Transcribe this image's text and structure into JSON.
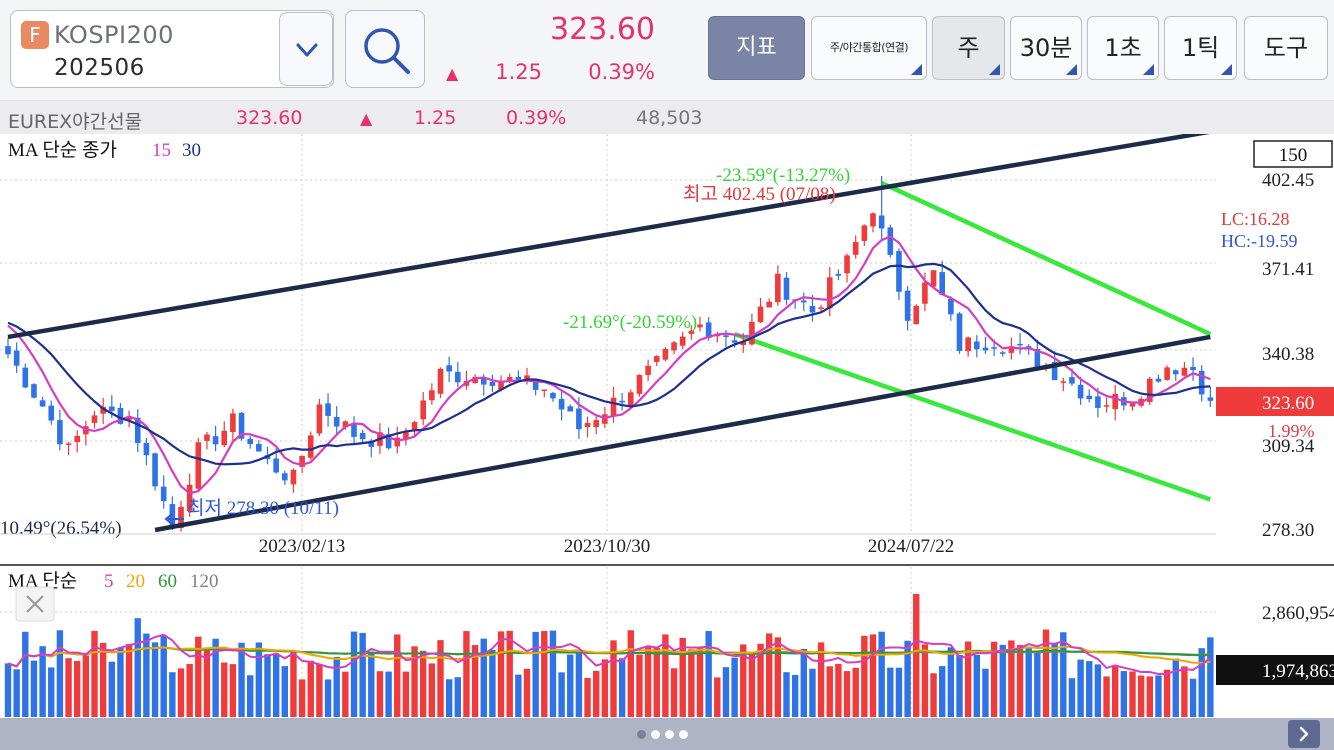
{
  "header": {
    "symbol_badge": "F",
    "symbol_name": "KOSPI200",
    "symbol_code": "202506",
    "price": "323.60",
    "change_arrow": "▲",
    "change": "1.25",
    "change_pct": "0.39%"
  },
  "toolbar": {
    "indicator": "지표",
    "session": "주/야간통합(연결)",
    "period": "주",
    "min30": "30분",
    "sec1": "1초",
    "tick1": "1틱",
    "tools": "도구"
  },
  "subbar": {
    "name": "EUREX야간선물",
    "price": "323.60",
    "arrow": "▲",
    "change": "1.25",
    "pct": "0.39%",
    "volume": "48,503"
  },
  "price_panel": {
    "legend_title": "MA 단순 종가",
    "ma_a": "15",
    "ma_b": "30",
    "count_box": "150",
    "y_labels": [
      "402.45",
      "371.41",
      "340.38",
      "309.34",
      "278.30"
    ],
    "x_labels": [
      "2023/02/13",
      "2023/10/30",
      "2024/07/22"
    ],
    "lc": "LC:16.28",
    "hc": "HC:-19.59",
    "current_price": "323.60",
    "current_pct": "1.99%",
    "annot_high": "최고 402.45 (07/08)",
    "annot_low": "최저 278.30 (10/11)",
    "annot_angle_top": "-23.59°(-13.27%)",
    "annot_angle_mid": "-21.69°(-20.59%)",
    "annot_angle_left": "10.49°(26.54%)"
  },
  "volume_panel": {
    "legend_title": "MA 단순",
    "ma5": "5",
    "ma20": "20",
    "ma60": "60",
    "ma120": "120",
    "y_top": "2,860,954",
    "current_volume": "1,974,863"
  },
  "colors": {
    "up": "#ef3b3b",
    "down": "#2f73e6",
    "ma15": "#d43fc0",
    "ma30": "#1f2f8f",
    "channel": "#1d2b4a",
    "green_channel": "#39e83a",
    "accent_pink": "#e7316c",
    "vol_ma5": "#d43fc0",
    "vol_ma20": "#f0a800",
    "vol_ma60": "#2a9a3c",
    "vol_ma120": "#808080"
  },
  "chart_data": {
    "type": "candlestick",
    "interval": "weekly",
    "y_range": [
      278.3,
      402.45
    ],
    "y_ticks": [
      402.45,
      371.41,
      340.38,
      309.34,
      278.3
    ],
    "x_ticks": [
      "2023/02/13",
      "2023/10/30",
      "2024/07/22"
    ],
    "high": {
      "value": 402.45,
      "date": "07/08"
    },
    "low": {
      "value": 278.3,
      "date": "10/11"
    },
    "last": 323.6,
    "close_anchors": [
      {
        "i": 0,
        "v": 340.0
      },
      {
        "i": 4,
        "v": 322.0
      },
      {
        "i": 7,
        "v": 306.0
      },
      {
        "i": 10,
        "v": 320.0
      },
      {
        "i": 14,
        "v": 318.0
      },
      {
        "i": 17,
        "v": 296.0
      },
      {
        "i": 19,
        "v": 280.0
      },
      {
        "i": 22,
        "v": 306.0
      },
      {
        "i": 26,
        "v": 316.0
      },
      {
        "i": 30,
        "v": 302.0
      },
      {
        "i": 33,
        "v": 296.0
      },
      {
        "i": 36,
        "v": 322.0
      },
      {
        "i": 40,
        "v": 312.0
      },
      {
        "i": 45,
        "v": 308.0
      },
      {
        "i": 50,
        "v": 333.0
      },
      {
        "i": 56,
        "v": 332.0
      },
      {
        "i": 62,
        "v": 328.0
      },
      {
        "i": 66,
        "v": 314.0
      },
      {
        "i": 70,
        "v": 323.0
      },
      {
        "i": 75,
        "v": 336.0
      },
      {
        "i": 80,
        "v": 350.0
      },
      {
        "i": 85,
        "v": 345.0
      },
      {
        "i": 89,
        "v": 365.0
      },
      {
        "i": 93,
        "v": 355.0
      },
      {
        "i": 97,
        "v": 372.0
      },
      {
        "i": 100,
        "v": 392.0
      },
      {
        "i": 102,
        "v": 372.0
      },
      {
        "i": 104,
        "v": 355.0
      },
      {
        "i": 107,
        "v": 368.0
      },
      {
        "i": 110,
        "v": 343.0
      },
      {
        "i": 114,
        "v": 345.0
      },
      {
        "i": 118,
        "v": 340.0
      },
      {
        "i": 122,
        "v": 332.0
      },
      {
        "i": 126,
        "v": 323.0
      },
      {
        "i": 130,
        "v": 325.0
      },
      {
        "i": 134,
        "v": 336.0
      },
      {
        "i": 137,
        "v": 335.0
      },
      {
        "i": 139,
        "v": 323.6
      }
    ],
    "channel_upper": [
      [
        0,
        346.0
      ],
      [
        139,
        418.0
      ]
    ],
    "channel_lower": [
      [
        17,
        278.3
      ],
      [
        139,
        346.0
      ]
    ],
    "green_upper": [
      [
        101,
        400.0
      ],
      [
        139,
        347.0
      ]
    ],
    "green_lower": [
      [
        84,
        347.0
      ],
      [
        139,
        289.0
      ]
    ]
  }
}
